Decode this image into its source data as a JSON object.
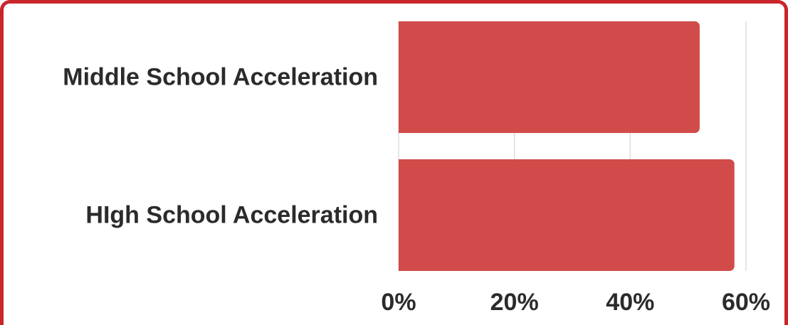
{
  "chart_data": {
    "type": "bar",
    "orientation": "horizontal",
    "categories": [
      "Middle School Acceleration",
      "HIgh School Acceleration"
    ],
    "series": [
      {
        "values": [
          52,
          58
        ]
      }
    ],
    "xlim": [
      0,
      60
    ],
    "xticks": [
      0,
      20,
      40,
      60
    ],
    "xtick_labels": [
      "0%",
      "20%",
      "40%",
      "60%"
    ],
    "grid": true,
    "colors": {
      "bar": "#d24b4b",
      "frame": "#c9262b",
      "grid": "#dddddd",
      "text": "#2b2b2b"
    }
  }
}
